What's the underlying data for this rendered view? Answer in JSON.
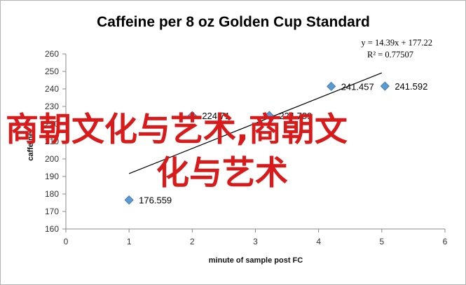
{
  "chart_data": {
    "type": "scatter",
    "title": "Caffeine per 8 oz Golden Cup Standard",
    "xlabel": "minute of sample post FC",
    "ylabel": "caffeine",
    "xlim": [
      0,
      6
    ],
    "ylim": [
      160,
      260
    ],
    "x_ticks": [
      "0",
      "1",
      "2",
      "3",
      "4",
      "5",
      "6"
    ],
    "y_ticks": [
      "160",
      "170",
      "180",
      "190",
      "200",
      "210",
      "220",
      "230",
      "240",
      "250",
      "260"
    ],
    "points": [
      {
        "x": 1,
        "y": 176.559,
        "label": "176.559"
      },
      {
        "x": 2,
        "y": 224.71,
        "label": "224.71"
      },
      {
        "x": 3.22,
        "y": 224.789,
        "label": "224.789"
      },
      {
        "x": 4.2,
        "y": 241.457,
        "label": "241.457"
      },
      {
        "x": 5.05,
        "y": 241.592,
        "label": "241.592"
      }
    ],
    "trendline": {
      "type": "linear",
      "slope": 14.39,
      "intercept": 177.22,
      "x_range": [
        1,
        5
      ],
      "equation": "y = 14.39x + 177.22",
      "r_squared": "R² = 0.77507"
    },
    "marker_color": "#5b9bd5",
    "trendline_color": "#000000",
    "gridlines": false,
    "legend": "none"
  },
  "overlay": {
    "line1": "商朝文化与艺术,商朝文",
    "line2": "化与艺术",
    "color": "#d81a1a"
  }
}
